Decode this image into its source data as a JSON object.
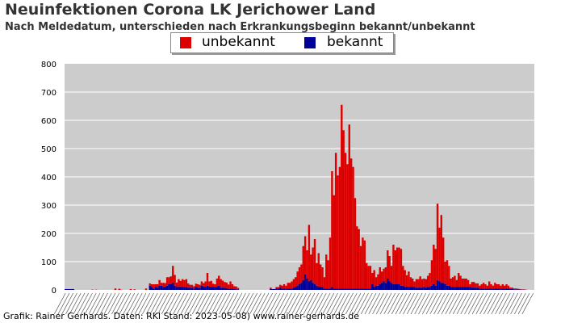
{
  "header": {
    "title": "Neuinfektionen Corona LK Jerichower Land",
    "subtitle": "Nach Meldedatum, unterschieden nach Erkrankungsbeginn bekannt/unbekannt"
  },
  "footer": {
    "credit": "Grafik: Rainer Gerhards. Daten: RKI Stand: 2023-05-08) www.rainer-gerhards.de"
  },
  "colors": {
    "unbekannt": "#dd0000",
    "bekannt": "#000099",
    "plot_background": "#cccccc",
    "gridline": "#ffffff"
  },
  "chart_data": {
    "type": "bar",
    "stacked": true,
    "x_unit": "week",
    "x_tick_labels_legible": false,
    "ylim": [
      0,
      800
    ],
    "yticks": [
      0,
      100,
      200,
      300,
      400,
      500,
      600,
      700,
      800
    ],
    "grid": true,
    "legend_position": "top",
    "series": [
      {
        "name": "unbekannt",
        "values": [
          0,
          0,
          0,
          0,
          0,
          0,
          0,
          0,
          0,
          0,
          0,
          0,
          0,
          0,
          1,
          0,
          1,
          0,
          0,
          0,
          0,
          0,
          0,
          0,
          0,
          0,
          5,
          0,
          4,
          1,
          0,
          0,
          0,
          0,
          3,
          0,
          2,
          0,
          0,
          0,
          0,
          0,
          5,
          0,
          8,
          10,
          15,
          10,
          12,
          20,
          10,
          15,
          12,
          30,
          25,
          28,
          60,
          38,
          16,
          26,
          20,
          28,
          25,
          28,
          15,
          10,
          10,
          8,
          12,
          12,
          10,
          15,
          12,
          20,
          45,
          18,
          22,
          12,
          10,
          30,
          35,
          30,
          25,
          20,
          20,
          15,
          25,
          15,
          10,
          10,
          5,
          0,
          0,
          0,
          0,
          0,
          0,
          0,
          0,
          0,
          0,
          0,
          0,
          0,
          0,
          0,
          0,
          5,
          0,
          0,
          5,
          5,
          10,
          10,
          15,
          10,
          20,
          20,
          25,
          30,
          35,
          50,
          60,
          65,
          120,
          135,
          100,
          200,
          90,
          125,
          160,
          80,
          120,
          80,
          70,
          40,
          120,
          100,
          180,
          410,
          330,
          480,
          400,
          430,
          650,
          560,
          480,
          440,
          580,
          460,
          430,
          320,
          220,
          210,
          150,
          180,
          170,
          90,
          80,
          80,
          40,
          60,
          30,
          40,
          60,
          40,
          45,
          55,
          100,
          90,
          60,
          140,
          120,
          130,
          130,
          130,
          70,
          60,
          40,
          55,
          35,
          30,
          20,
          30,
          30,
          40,
          30,
          30,
          30,
          40,
          50,
          90,
          140,
          130,
          270,
          190,
          240,
          160,
          80,
          90,
          70,
          30,
          35,
          40,
          25,
          50,
          40,
          30,
          30,
          30,
          25,
          10,
          20,
          20,
          15,
          15,
          10,
          15,
          20,
          15,
          10,
          25,
          15,
          10,
          20,
          15,
          15,
          10,
          15,
          10,
          15,
          10,
          5,
          5,
          3,
          3,
          2,
          2,
          1,
          1,
          1,
          0,
          0,
          0,
          0
        ]
      },
      {
        "name": "bekannt",
        "values": [
          3,
          3,
          3,
          3,
          3,
          0,
          0,
          0,
          0,
          0,
          0,
          0,
          0,
          0,
          0,
          0,
          0,
          0,
          0,
          0,
          0,
          0,
          0,
          0,
          0,
          0,
          0,
          0,
          0,
          0,
          0,
          0,
          0,
          0,
          0,
          0,
          0,
          0,
          0,
          0,
          0,
          0,
          0,
          0,
          15,
          10,
          5,
          10,
          8,
          15,
          15,
          10,
          12,
          15,
          20,
          20,
          25,
          15,
          10,
          12,
          12,
          10,
          10,
          10,
          8,
          8,
          8,
          5,
          10,
          8,
          8,
          15,
          12,
          10,
          15,
          12,
          10,
          10,
          10,
          10,
          15,
          8,
          8,
          8,
          6,
          4,
          5,
          5,
          3,
          2,
          2,
          0,
          0,
          0,
          0,
          0,
          0,
          0,
          0,
          0,
          0,
          0,
          0,
          0,
          0,
          0,
          0,
          3,
          3,
          3,
          5,
          5,
          8,
          5,
          5,
          5,
          5,
          5,
          5,
          8,
          10,
          15,
          20,
          25,
          35,
          55,
          40,
          30,
          35,
          25,
          20,
          15,
          10,
          10,
          10,
          5,
          5,
          5,
          5,
          10,
          5,
          5,
          5,
          5,
          5,
          5,
          5,
          5,
          5,
          5,
          5,
          5,
          5,
          5,
          5,
          5,
          5,
          5,
          5,
          5,
          20,
          10,
          15,
          15,
          20,
          25,
          30,
          25,
          40,
          30,
          25,
          20,
          20,
          20,
          20,
          15,
          15,
          10,
          12,
          10,
          10,
          10,
          10,
          8,
          8,
          8,
          8,
          10,
          8,
          10,
          10,
          15,
          20,
          15,
          35,
          30,
          25,
          25,
          20,
          15,
          15,
          10,
          10,
          10,
          10,
          10,
          10,
          10,
          10,
          10,
          10,
          10,
          8,
          8,
          8,
          8,
          5,
          5,
          5,
          5,
          5,
          5,
          5,
          5,
          5,
          5,
          5,
          5,
          5,
          5,
          5,
          5,
          3,
          3,
          2,
          2,
          2,
          1,
          1,
          1,
          0,
          0,
          0,
          0,
          0
        ]
      }
    ]
  }
}
